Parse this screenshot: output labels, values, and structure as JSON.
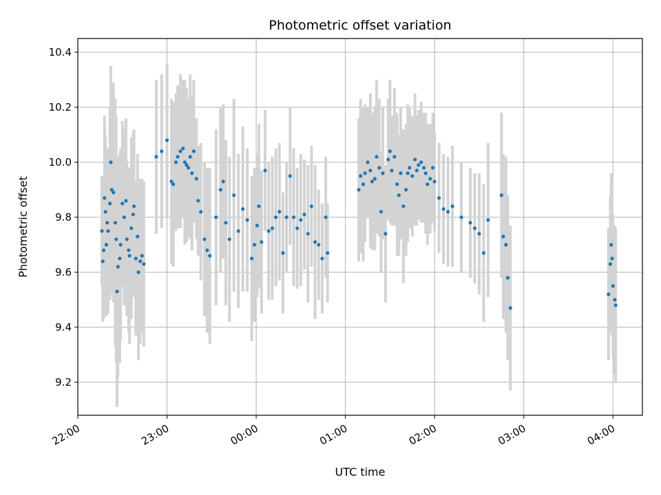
{
  "chart_data": {
    "type": "scatter",
    "title": "Photometric offset variation",
    "xlabel": "UTC time",
    "ylabel": "Photometric offset",
    "x_unit": "hours after 22:00 UTC",
    "xlim": [
      0,
      6.33
    ],
    "ylim": [
      9.08,
      10.45
    ],
    "xticks": [
      {
        "value": 0,
        "label": "22:00"
      },
      {
        "value": 1,
        "label": "23:00"
      },
      {
        "value": 2,
        "label": "00:00"
      },
      {
        "value": 3,
        "label": "01:00"
      },
      {
        "value": 4,
        "label": "02:00"
      },
      {
        "value": 5,
        "label": "03:00"
      },
      {
        "value": 6,
        "label": "04:00"
      }
    ],
    "yticks": [
      {
        "value": 9.2,
        "label": "9.2"
      },
      {
        "value": 9.4,
        "label": "9.4"
      },
      {
        "value": 9.6,
        "label": "9.6"
      },
      {
        "value": 9.8,
        "label": "9.8"
      },
      {
        "value": 10.0,
        "label": "10.0"
      },
      {
        "value": 10.2,
        "label": "10.2"
      },
      {
        "value": 10.4,
        "label": "10.4"
      }
    ],
    "grid": true,
    "colors": {
      "points": "#1f77b4",
      "errorbars": "#d3d3d3"
    },
    "series": [
      {
        "x": [
          0.27,
          0.28,
          0.29,
          0.3,
          0.31,
          0.32,
          0.33,
          0.34,
          0.36,
          0.37,
          0.38,
          0.4,
          0.42,
          0.43,
          0.44,
          0.45,
          0.47,
          0.48,
          0.5,
          0.52,
          0.54,
          0.55,
          0.57,
          0.58,
          0.6,
          0.62,
          0.63,
          0.65,
          0.67,
          0.68,
          0.7,
          0.72,
          0.74,
          0.88,
          0.94,
          1.0,
          1.05,
          1.07,
          1.1,
          1.12,
          1.15,
          1.18,
          1.2,
          1.22,
          1.24,
          1.26,
          1.28,
          1.3,
          1.33,
          1.35,
          1.38,
          1.42,
          1.45,
          1.48,
          1.55,
          1.6,
          1.63,
          1.66,
          1.7,
          1.75,
          1.8,
          1.85,
          1.9,
          1.95,
          1.98,
          2.01,
          2.03,
          2.06,
          2.1,
          2.14,
          2.18,
          2.22,
          2.26,
          2.3,
          2.34,
          2.38,
          2.42,
          2.46,
          2.5,
          2.54,
          2.58,
          2.62,
          2.66,
          2.7,
          2.74,
          2.78,
          2.8,
          3.15,
          3.17,
          3.2,
          3.22,
          3.25,
          3.28,
          3.3,
          3.33,
          3.35,
          3.38,
          3.4,
          3.42,
          3.45,
          3.48,
          3.5,
          3.52,
          3.55,
          3.58,
          3.6,
          3.62,
          3.65,
          3.68,
          3.7,
          3.72,
          3.75,
          3.78,
          3.8,
          3.82,
          3.85,
          3.88,
          3.9,
          3.92,
          3.95,
          3.98,
          4.0,
          4.05,
          4.1,
          4.15,
          4.2,
          4.3,
          4.4,
          4.45,
          4.5,
          4.55,
          4.6,
          4.75,
          4.77,
          4.8,
          4.82,
          4.85,
          5.95,
          5.97,
          5.98,
          5.99,
          6.0,
          6.02,
          6.03
        ],
        "y": [
          9.75,
          9.64,
          9.68,
          9.87,
          9.82,
          9.7,
          9.78,
          9.75,
          9.85,
          10.0,
          9.9,
          9.89,
          9.78,
          9.72,
          9.53,
          9.62,
          9.65,
          9.7,
          9.85,
          9.8,
          9.86,
          9.72,
          9.68,
          9.66,
          9.76,
          9.81,
          9.84,
          9.65,
          9.73,
          9.6,
          9.64,
          9.66,
          9.63,
          10.02,
          10.04,
          10.08,
          9.93,
          9.92,
          10.0,
          10.02,
          10.04,
          10.05,
          10.0,
          9.99,
          9.98,
          10.02,
          9.96,
          10.04,
          9.94,
          9.86,
          9.82,
          9.72,
          9.68,
          9.66,
          9.8,
          9.9,
          9.93,
          9.78,
          9.72,
          9.88,
          9.75,
          9.83,
          9.79,
          9.65,
          9.7,
          9.77,
          9.84,
          9.71,
          9.97,
          9.75,
          9.76,
          9.8,
          9.82,
          9.67,
          9.8,
          9.95,
          9.8,
          9.76,
          9.79,
          9.81,
          9.74,
          9.84,
          9.71,
          9.7,
          9.65,
          9.8,
          9.67,
          9.9,
          9.95,
          9.92,
          9.96,
          10.0,
          9.97,
          9.93,
          9.94,
          10.02,
          9.98,
          9.82,
          9.96,
          9.74,
          10.01,
          10.04,
          9.97,
          10.02,
          9.92,
          9.88,
          9.96,
          9.84,
          9.9,
          9.96,
          9.98,
          9.95,
          10.01,
          9.97,
          9.99,
          10.0,
          9.98,
          9.96,
          9.92,
          9.94,
          9.98,
          9.93,
          9.87,
          9.83,
          9.82,
          9.84,
          9.8,
          9.78,
          9.76,
          9.74,
          9.67,
          9.79,
          9.88,
          9.73,
          9.7,
          9.58,
          9.47,
          9.52,
          9.63,
          9.7,
          9.65,
          9.55,
          9.5,
          9.48
        ],
        "yerr": [
          0.2,
          0.22,
          0.25,
          0.3,
          0.28,
          0.26,
          0.24,
          0.3,
          0.35,
          0.35,
          0.38,
          0.4,
          0.45,
          0.45,
          0.42,
          0.4,
          0.38,
          0.35,
          0.3,
          0.32,
          0.3,
          0.28,
          0.3,
          0.32,
          0.33,
          0.3,
          0.28,
          0.28,
          0.3,
          0.32,
          0.3,
          0.28,
          0.3,
          0.28,
          0.28,
          0.28,
          0.3,
          0.3,
          0.25,
          0.26,
          0.28,
          0.25,
          0.3,
          0.28,
          0.25,
          0.3,
          0.28,
          0.26,
          0.22,
          0.2,
          0.25,
          0.28,
          0.3,
          0.32,
          0.32,
          0.3,
          0.28,
          0.3,
          0.3,
          0.35,
          0.28,
          0.3,
          0.26,
          0.3,
          0.28,
          0.26,
          0.3,
          0.26,
          0.22,
          0.25,
          0.26,
          0.25,
          0.25,
          0.22,
          0.2,
          0.25,
          0.25,
          0.22,
          0.24,
          0.2,
          0.25,
          0.22,
          0.28,
          0.2,
          0.2,
          0.22,
          0.18,
          0.26,
          0.28,
          0.28,
          0.25,
          0.2,
          0.28,
          0.25,
          0.26,
          0.28,
          0.25,
          0.22,
          0.24,
          0.25,
          0.22,
          0.26,
          0.2,
          0.25,
          0.26,
          0.22,
          0.24,
          0.28,
          0.24,
          0.25,
          0.22,
          0.22,
          0.24,
          0.2,
          0.2,
          0.22,
          0.2,
          0.22,
          0.22,
          0.2,
          0.2,
          0.18,
          0.2,
          0.2,
          0.2,
          0.22,
          0.2,
          0.2,
          0.2,
          0.22,
          0.25,
          0.28,
          0.3,
          0.3,
          0.32,
          0.3,
          0.3,
          0.24,
          0.25,
          0.26,
          0.28,
          0.26,
          0.27,
          0.28
        ]
      }
    ]
  }
}
